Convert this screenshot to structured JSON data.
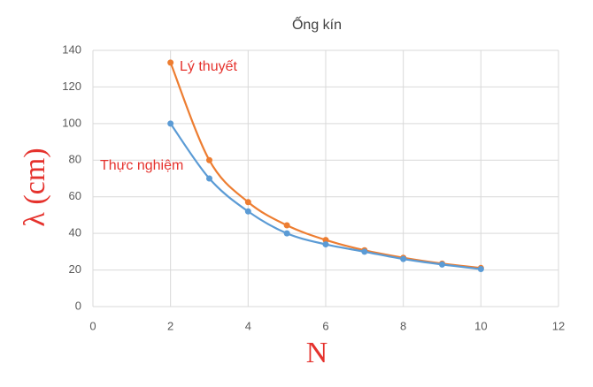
{
  "chart_data": {
    "type": "line",
    "title": "Ống kín",
    "x_label": "N",
    "y_label": "λ (cm)",
    "x": [
      2,
      3,
      4,
      5,
      6,
      7,
      8,
      9,
      10
    ],
    "series": [
      {
        "name": "Lý thuyết",
        "color": "#ed7d31",
        "values": [
          133.3,
          80,
          57.1,
          44.4,
          36.4,
          30.8,
          26.7,
          23.5,
          21.1
        ]
      },
      {
        "name": "Thực nghiệm",
        "color": "#5b9bd5",
        "values": [
          100,
          70,
          52,
          40,
          34,
          30,
          26,
          23,
          20.5
        ]
      }
    ],
    "xlim": [
      0,
      12
    ],
    "xticks": [
      0,
      2,
      4,
      6,
      8,
      10,
      12
    ],
    "ylim": [
      0,
      140
    ],
    "yticks": [
      0,
      20,
      40,
      60,
      80,
      100,
      120,
      140
    ],
    "grid": true,
    "smooth": true
  }
}
